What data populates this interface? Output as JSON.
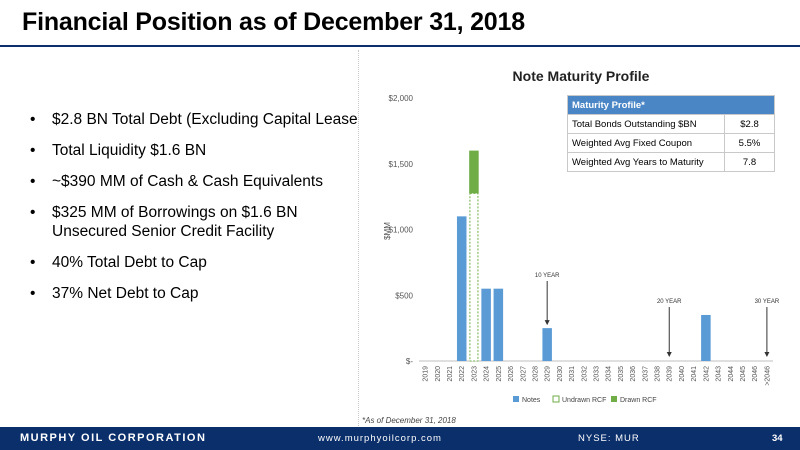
{
  "slide": {
    "title": "Financial Position as of December 31, 2018",
    "bullets": [
      "$2.8 BN Total Debt (Excluding Capital Lease)",
      "Total Liquidity $1.6 BN",
      "~$390 MM of Cash & Cash Equivalents",
      "$325 MM of Borrowings on $1.6 BN Unsecured Senior Credit Facility",
      "40% Total Debt to Cap",
      "37% Net Debt to Cap"
    ],
    "bullet_char": "•",
    "footnote": "*As of December 31, 2018"
  },
  "maturity_table": {
    "header": "Maturity Profile*",
    "rows": [
      {
        "label": "Total Bonds Outstanding $BN",
        "value": "$2.8"
      },
      {
        "label": "Weighted Avg Fixed Coupon",
        "value": "5.5%"
      },
      {
        "label": "Weighted Avg Years to Maturity",
        "value": "7.8"
      }
    ]
  },
  "footer": {
    "company": "MURPHY OIL CORPORATION",
    "website": "www.murphyoilcorp.com",
    "ticker": "NYSE: MUR",
    "page": "34"
  },
  "colors": {
    "navy": "#0b2f6b",
    "notes": "#5b9bd5",
    "drawn_rcf": "#70ad47",
    "undrawn_rcf_border": "#70ad47",
    "table_header": "#4a86c5"
  },
  "chart_data": {
    "type": "bar",
    "title": "Note Maturity Profile",
    "ylabel": "$MM",
    "xlabel": "",
    "ylim": [
      0,
      2000
    ],
    "y_ticks": [
      0,
      500,
      1000,
      1500,
      2000
    ],
    "y_tick_labels": [
      "$-",
      "$500",
      "$1,000",
      "$1,500",
      "$2,000"
    ],
    "grid": false,
    "legend_position": "bottom",
    "stacked": true,
    "categories": [
      "2019",
      "2020",
      "2021",
      "2022",
      "2023",
      "2024",
      "2025",
      "2026",
      "2027",
      "2028",
      "2029",
      "2030",
      "2031",
      "2032",
      "2033",
      "2034",
      "2035",
      "2036",
      "2037",
      "2038",
      "2039",
      "2040",
      "2041",
      "2042",
      "2043",
      "2044",
      "2045",
      "2046",
      ">2046"
    ],
    "series": [
      {
        "name": "Notes",
        "style": "solid",
        "color": "#5b9bd5",
        "values": [
          0,
          0,
          0,
          1100,
          0,
          550,
          550,
          0,
          0,
          0,
          250,
          0,
          0,
          0,
          0,
          0,
          0,
          0,
          0,
          0,
          0,
          0,
          0,
          350,
          0,
          0,
          0,
          0,
          0
        ]
      },
      {
        "name": "Undrawn RCF",
        "style": "outline",
        "color": "#70ad47",
        "values": [
          0,
          0,
          0,
          0,
          1275,
          0,
          0,
          0,
          0,
          0,
          0,
          0,
          0,
          0,
          0,
          0,
          0,
          0,
          0,
          0,
          0,
          0,
          0,
          0,
          0,
          0,
          0,
          0,
          0
        ]
      },
      {
        "name": "Drawn RCF",
        "style": "solid",
        "color": "#70ad47",
        "values": [
          0,
          0,
          0,
          0,
          325,
          0,
          0,
          0,
          0,
          0,
          0,
          0,
          0,
          0,
          0,
          0,
          0,
          0,
          0,
          0,
          0,
          0,
          0,
          0,
          0,
          0,
          0,
          0,
          0
        ]
      }
    ],
    "annotations": [
      {
        "text": "10 YEAR",
        "category": "2029"
      },
      {
        "text": "20 YEAR",
        "category": "2039"
      },
      {
        "text": "30 YEAR",
        "category": ">2046"
      }
    ]
  }
}
